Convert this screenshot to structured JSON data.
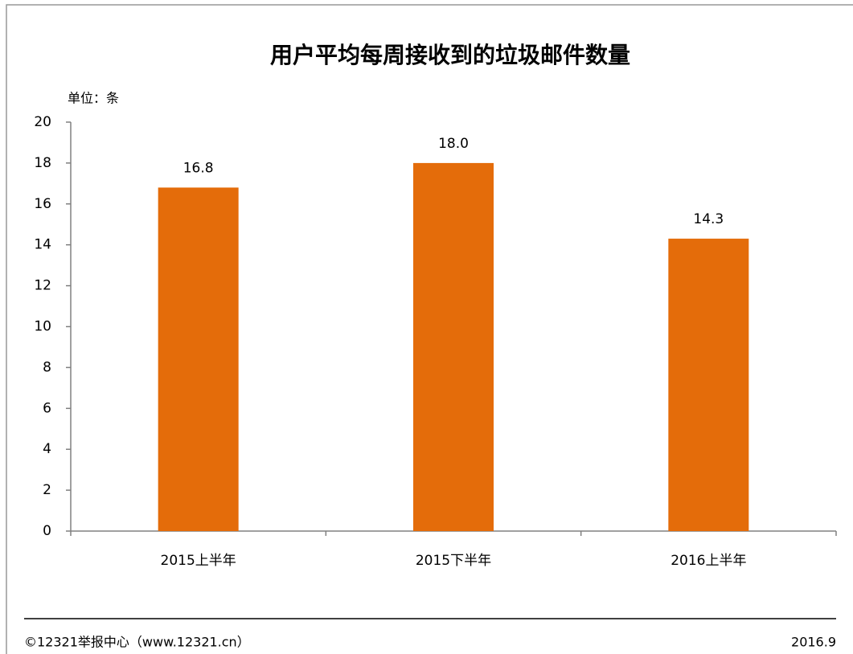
{
  "chart_data": {
    "type": "bar",
    "title": "用户平均每周接收到的垃圾邮件数量",
    "unit_label": "单位：条",
    "categories": [
      "2015上半年",
      "2015下半年",
      "2016上半年"
    ],
    "values": [
      16.8,
      18.0,
      14.3
    ],
    "value_labels": [
      "16.8",
      "18.0",
      "14.3"
    ],
    "color": "#e46c0a",
    "ylim": [
      0,
      20
    ],
    "yticks": [
      0,
      2,
      4,
      6,
      8,
      10,
      12,
      14,
      16,
      18,
      20
    ],
    "grid": false,
    "source": "©12321举报中心（www.12321.cn）",
    "date": "2016.9"
  }
}
